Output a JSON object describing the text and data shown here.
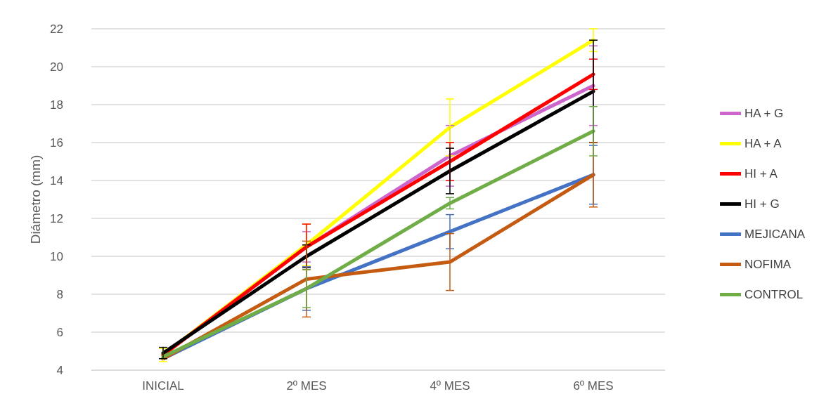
{
  "chart_data": {
    "type": "line",
    "ylabel": "Diámetro (mm)",
    "categories": [
      "INICIAL",
      "2º MES",
      "4º MES",
      "6º MES"
    ],
    "series": [
      {
        "name": "HA + G",
        "color": "#cc66cc",
        "values": [
          4.8,
          10.5,
          15.3,
          19.0
        ],
        "errors": [
          null,
          0.8,
          1.6,
          2.1
        ]
      },
      {
        "name": "HA + A",
        "color": "#ffff00",
        "values": [
          4.8,
          10.6,
          16.8,
          21.4
        ],
        "errors": [
          0.35,
          1.1,
          1.5,
          0.6
        ]
      },
      {
        "name": "HI + A",
        "color": "#ff0000",
        "values": [
          4.8,
          10.5,
          15.0,
          19.6
        ],
        "errors": [
          null,
          1.2,
          1.0,
          0.8
        ]
      },
      {
        "name": "HI + G",
        "color": "#000000",
        "values": [
          4.9,
          10.0,
          14.5,
          18.7
        ],
        "errors": [
          0.3,
          0.6,
          1.2,
          2.7
        ]
      },
      {
        "name": "MEJICANA",
        "color": "#4472c4",
        "values": [
          4.6,
          8.3,
          11.3,
          14.3
        ],
        "errors": [
          null,
          1.15,
          0.9,
          1.55
        ]
      },
      {
        "name": "NOFIMA",
        "color": "#c55a11",
        "values": [
          4.6,
          8.8,
          9.7,
          14.3
        ],
        "errors": [
          null,
          2.0,
          1.5,
          1.7
        ]
      },
      {
        "name": "CONTROL",
        "color": "#70ad47",
        "values": [
          4.7,
          8.3,
          12.8,
          16.6
        ],
        "errors": [
          null,
          1.0,
          0.3,
          1.3
        ]
      }
    ],
    "ylim": [
      4,
      22
    ],
    "yticks": [
      4,
      6,
      8,
      10,
      12,
      14,
      16,
      18,
      20,
      22
    ],
    "grid": "y",
    "legend": "right",
    "marker": "none",
    "line_style": "solid"
  }
}
